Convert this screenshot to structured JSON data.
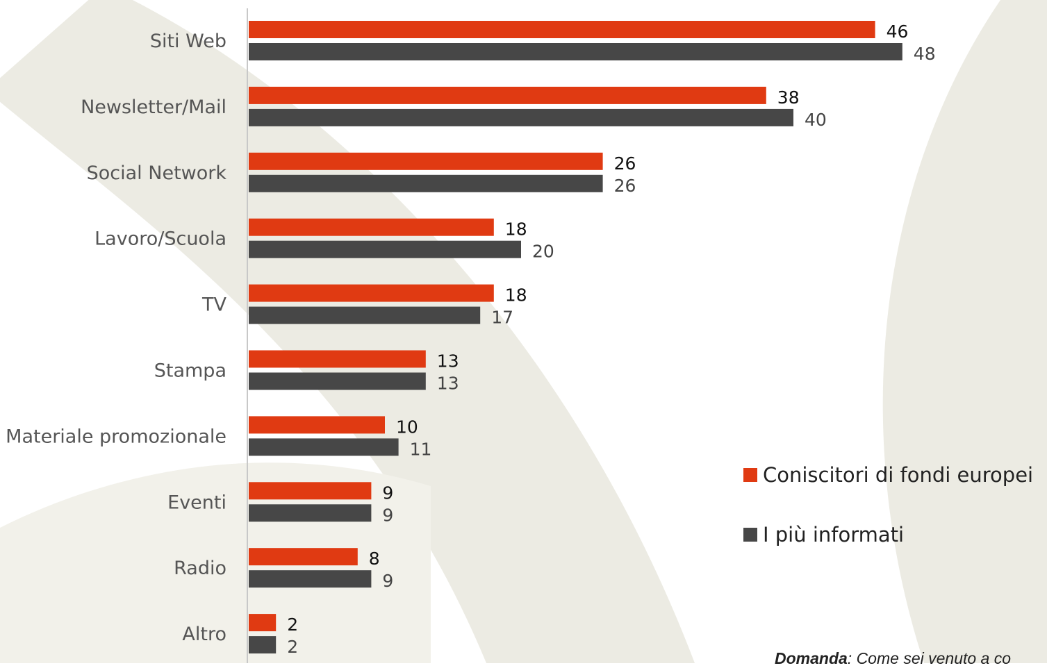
{
  "chart_data": {
    "type": "bar",
    "orientation": "horizontal",
    "categories": [
      "Siti Web",
      "Newsletter/Mail",
      "Social Network",
      "Lavoro/Scuola",
      "TV",
      "Stampa",
      "Materiale promozionale",
      "Eventi",
      "Radio",
      "Altro"
    ],
    "series": [
      {
        "name": "Coniscitori di fondi europei",
        "color": "#e03a12",
        "values": [
          46,
          38,
          26,
          18,
          18,
          13,
          10,
          9,
          8,
          2
        ]
      },
      {
        "name": "I più informati",
        "color": "#474747",
        "values": [
          48,
          40,
          26,
          20,
          17,
          13,
          11,
          9,
          9,
          2
        ]
      }
    ],
    "title": "",
    "xlabel": "",
    "ylabel": "",
    "xlim": [
      0,
      59
    ],
    "grid": false,
    "legend": "right",
    "data_labels": true
  },
  "footnote": {
    "bold": "Domanda",
    "text": ": Come sei venuto a co"
  }
}
